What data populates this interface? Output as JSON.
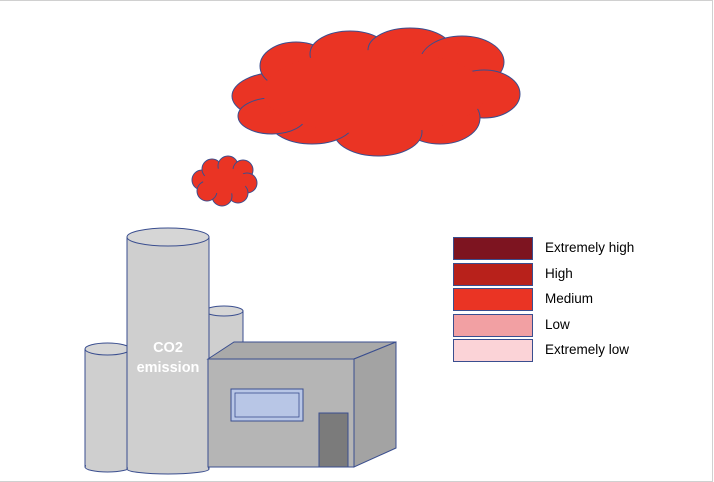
{
  "chimney": {
    "label_line1": "CO2",
    "label_line2": "emission"
  },
  "legend": {
    "items": [
      {
        "label": "Extremely high",
        "color": "#7d1420"
      },
      {
        "label": "High",
        "color": "#b8211b"
      },
      {
        "label": "Medium",
        "color": "#ea3424"
      },
      {
        "label": "Low",
        "color": "#f2a0a3"
      },
      {
        "label": "Extremely low",
        "color": "#fbd3d7"
      }
    ]
  },
  "colors": {
    "cloud": "#ea3424",
    "outline": "#3a4e8f",
    "chimney": "#cfcfcf",
    "building_front": "#b5b5b5",
    "building_side": "#a3a3a3",
    "building_roof": "#a9a9a9",
    "window": "#b8c6e6",
    "door": "#7b7b7b"
  }
}
